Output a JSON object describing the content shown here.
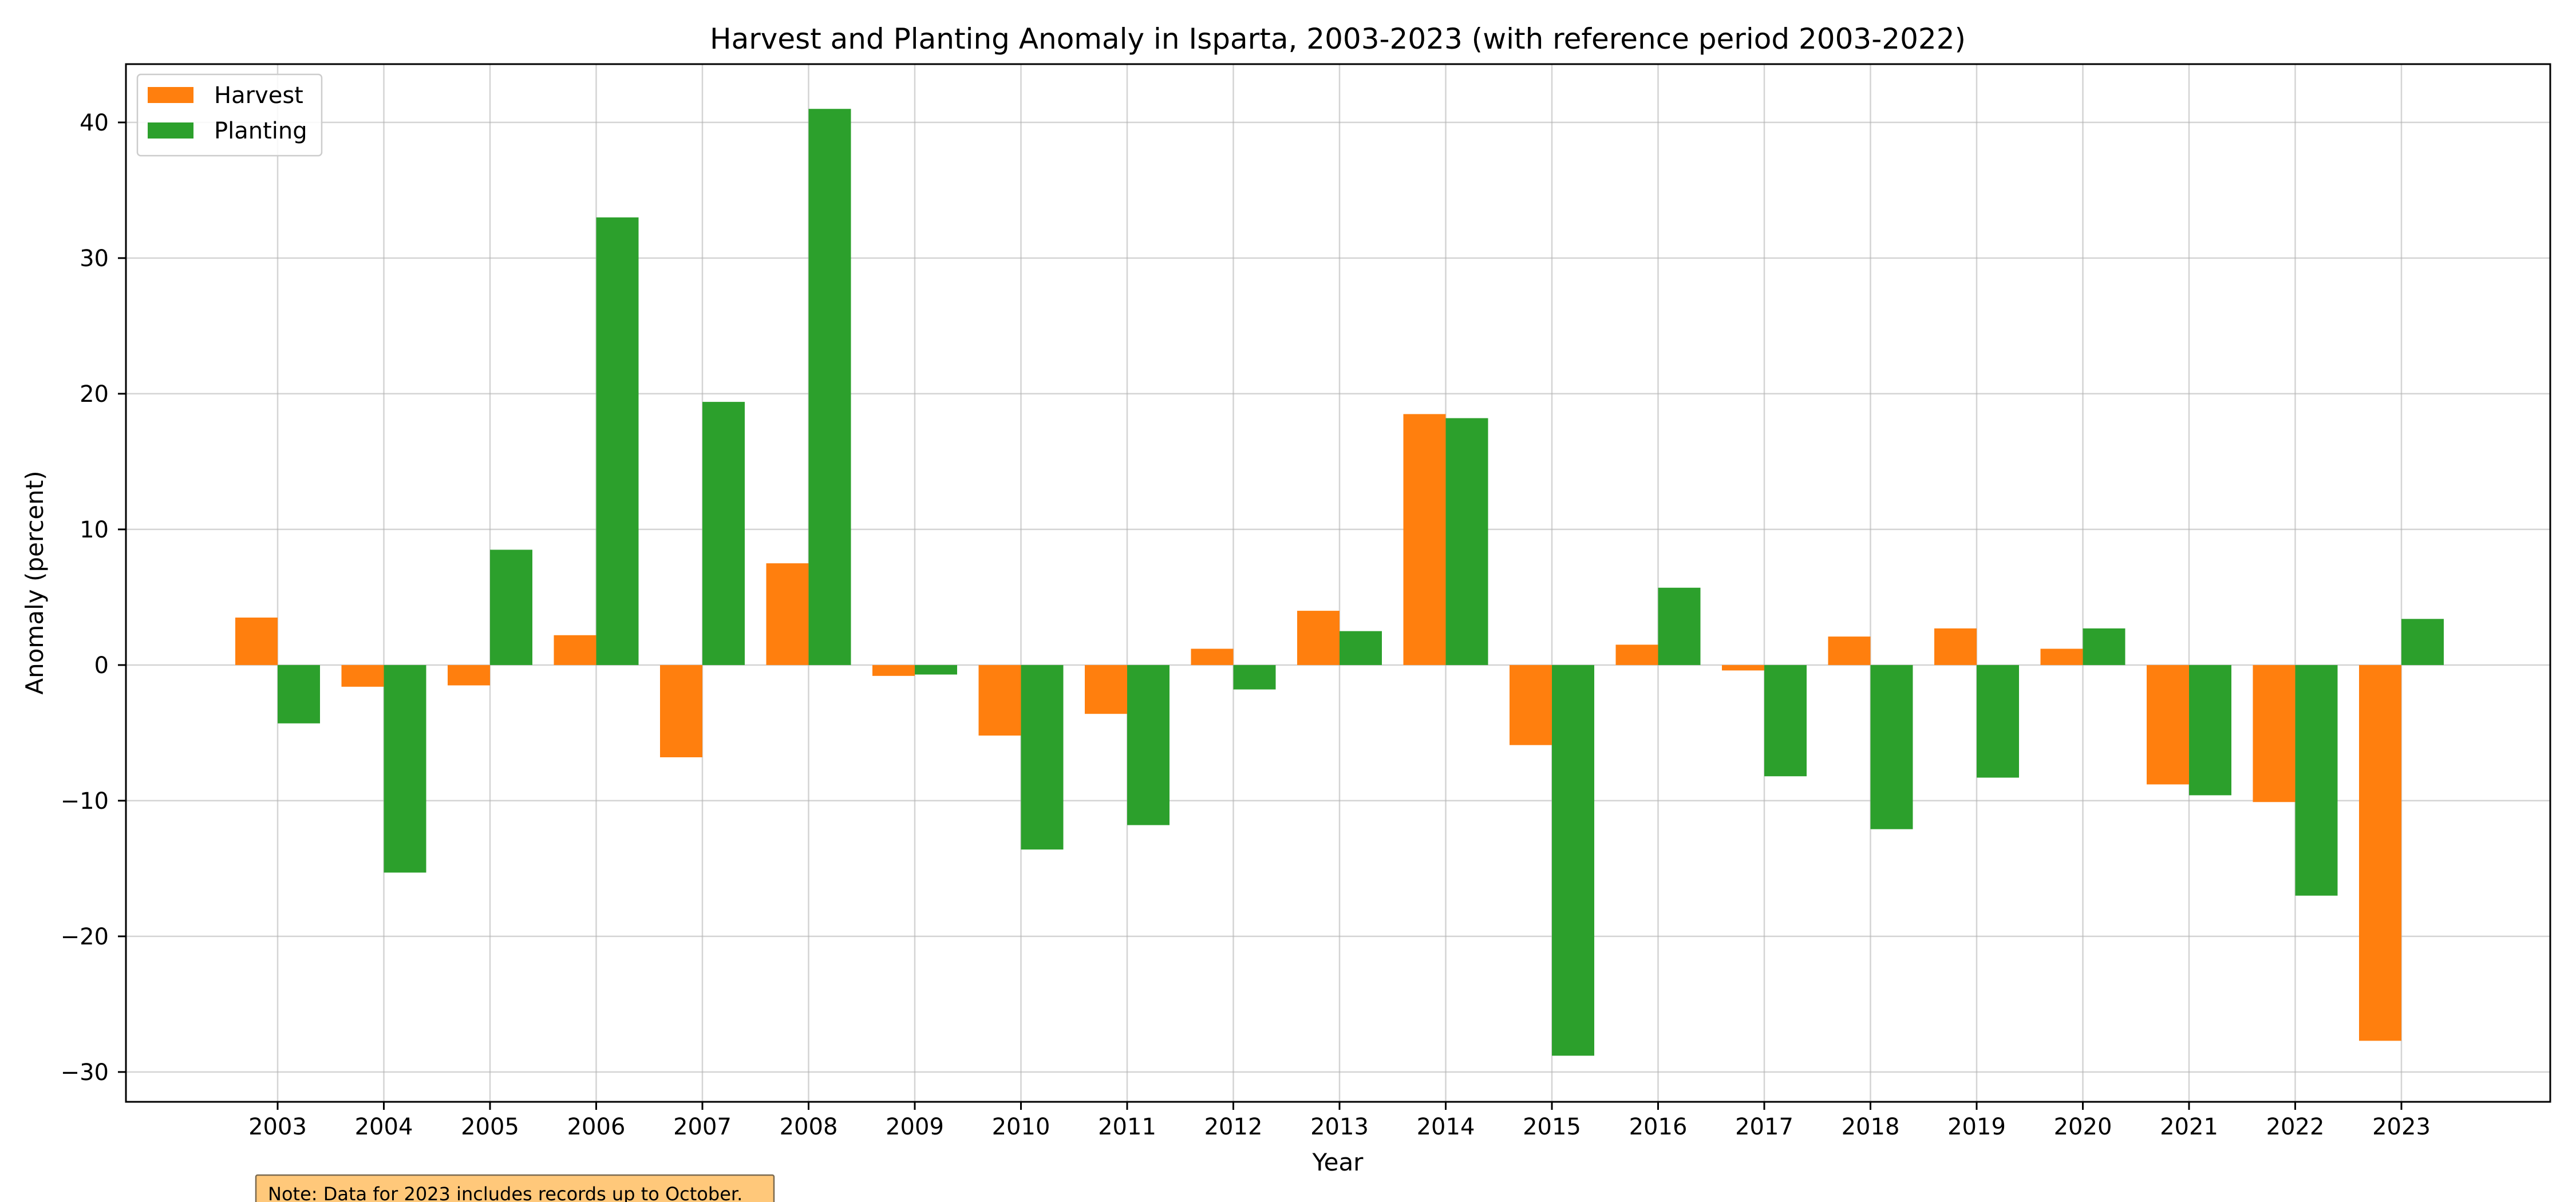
{
  "chart_data": {
    "type": "bar",
    "title": "Harvest and Planting Anomaly in Isparta, 2003-2023 (with reference period 2003-2022)",
    "xlabel": "Year",
    "ylabel": "Anomaly (percent)",
    "categories": [
      "2003",
      "2004",
      "2005",
      "2006",
      "2007",
      "2008",
      "2009",
      "2010",
      "2011",
      "2012",
      "2013",
      "2014",
      "2015",
      "2016",
      "2017",
      "2018",
      "2019",
      "2020",
      "2021",
      "2022",
      "2023"
    ],
    "series": [
      {
        "name": "Harvest",
        "color": "#ff7f0e",
        "values": [
          3.5,
          -1.6,
          -1.5,
          2.2,
          -6.8,
          7.5,
          -0.8,
          -5.2,
          -3.6,
          1.2,
          4.0,
          18.5,
          -5.9,
          1.5,
          -0.4,
          2.1,
          2.7,
          1.2,
          -8.8,
          -10.1,
          -27.7
        ]
      },
      {
        "name": "Planting",
        "color": "#2ca02c",
        "values": [
          -4.3,
          -15.3,
          8.5,
          33.0,
          19.4,
          41.0,
          -0.7,
          -13.6,
          -11.8,
          -1.8,
          2.5,
          18.2,
          -28.8,
          5.7,
          -8.2,
          -12.1,
          -8.3,
          2.7,
          -9.6,
          -17.0,
          3.4
        ]
      }
    ],
    "ylim": [
      -32.2,
      44.3
    ],
    "yticks": [
      -30,
      -20,
      -10,
      0,
      10,
      20,
      30,
      40
    ],
    "ytick_labels": [
      "−30",
      "−20",
      "−10",
      "0",
      "10",
      "20",
      "30",
      "40"
    ],
    "grid": true,
    "legend_position": "upper-left",
    "note": "Note: Data for 2023 includes records up to October."
  }
}
